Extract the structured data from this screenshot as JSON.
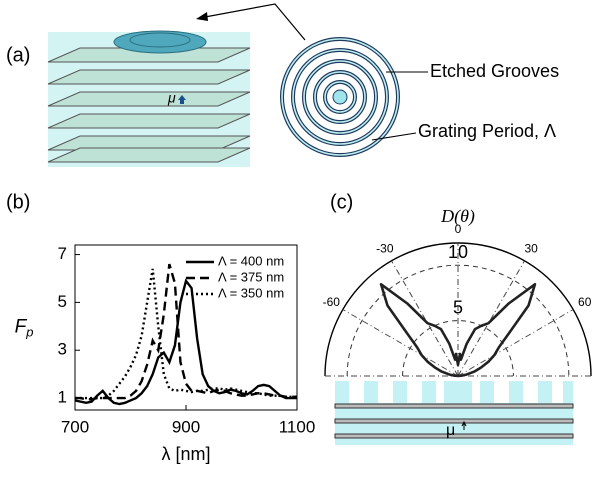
{
  "panels": [
    "(a)",
    "(b)",
    "(c)"
  ],
  "diagram": {
    "dipole": "μ",
    "labels": [
      "Etched Grooves",
      "Grating Period, Λ"
    ]
  },
  "chart_data": [
    {
      "type": "line",
      "xlabel": "λ [nm]",
      "ylabel": "F",
      "ylabel_sub": "p",
      "xlim": [
        700,
        1100
      ],
      "xticks": [
        700,
        900,
        1100
      ],
      "ylim": [
        0.5,
        7.4
      ],
      "yticks": [
        1,
        3,
        5,
        7
      ],
      "legend": "upper right",
      "x": [
        700,
        710,
        720,
        730,
        740,
        750,
        760,
        770,
        780,
        790,
        800,
        810,
        820,
        830,
        840,
        850,
        860,
        870,
        880,
        890,
        900,
        910,
        920,
        930,
        940,
        950,
        960,
        970,
        980,
        990,
        1000,
        1010,
        1020,
        1030,
        1040,
        1050,
        1060,
        1070,
        1080,
        1090,
        1100
      ],
      "series": [
        {
          "name": "Λ = 400 nm",
          "color": "#000000",
          "dash": "solid",
          "values": [
            0.9,
            0.85,
            0.8,
            0.85,
            1.1,
            1.3,
            1.0,
            0.8,
            0.75,
            0.8,
            0.9,
            1.0,
            1.2,
            1.5,
            2.0,
            2.7,
            2.9,
            2.5,
            3.2,
            5.0,
            5.9,
            5.6,
            3.5,
            2.0,
            1.5,
            1.3,
            1.2,
            1.25,
            1.35,
            1.3,
            1.2,
            1.15,
            1.3,
            1.5,
            1.55,
            1.5,
            1.3,
            1.1,
            1.0,
            1.0,
            1.0
          ]
        },
        {
          "name": "Λ = 375 nm",
          "color": "#000000",
          "dash": "dashed",
          "values": [
            1.0,
            1.0,
            0.95,
            0.95,
            1.0,
            1.0,
            1.0,
            1.0,
            1.0,
            1.0,
            1.1,
            1.3,
            1.7,
            2.4,
            3.4,
            3.0,
            4.5,
            6.6,
            5.8,
            2.5,
            1.6,
            1.3,
            1.3,
            1.25,
            1.2,
            1.3,
            1.35,
            1.3,
            1.2,
            1.15,
            1.1,
            1.1,
            1.15,
            1.2,
            1.2,
            1.15,
            1.1,
            1.1,
            1.05,
            1.05,
            1.05
          ]
        },
        {
          "name": "Λ = 350 nm",
          "color": "#000000",
          "dash": "dotted",
          "values": [
            1.0,
            1.0,
            1.0,
            1.0,
            1.0,
            1.0,
            1.1,
            1.3,
            1.6,
            1.9,
            2.3,
            2.8,
            3.6,
            5.0,
            6.4,
            4.0,
            2.0,
            1.4,
            1.3,
            1.35,
            1.3,
            1.25,
            1.3,
            1.3,
            1.35,
            1.4,
            1.4,
            1.35,
            1.4,
            1.35,
            1.3,
            1.25,
            1.2,
            1.2,
            1.15,
            1.1,
            1.1,
            1.1,
            1.05,
            1.05,
            1.05
          ]
        }
      ]
    },
    {
      "type": "polar",
      "title": "D(θ)",
      "rlim": [
        0,
        12
      ],
      "rticks": [
        5,
        10
      ],
      "thetaticks": [
        -60,
        -30,
        0,
        30,
        60
      ],
      "theta": [
        -90,
        -85,
        -80,
        -75,
        -70,
        -65,
        -60,
        -55,
        -50,
        -45,
        -40,
        -35,
        -30,
        -25,
        -20,
        -15,
        -10,
        -5,
        0,
        5,
        10,
        15,
        20,
        25,
        30,
        35,
        40,
        45,
        50,
        55,
        60,
        65,
        70,
        75,
        80,
        85,
        90
      ],
      "values": [
        0,
        0.3,
        0.8,
        1.5,
        2.2,
        3,
        3.8,
        4.5,
        6,
        9,
        10.8,
        8,
        5.5,
        5,
        4.5,
        3,
        1.5,
        2,
        1,
        2,
        1.5,
        3,
        4.5,
        5,
        5.5,
        8,
        10.8,
        9,
        6,
        4.5,
        3.8,
        3,
        2.2,
        1.5,
        0.8,
        0.3,
        0
      ],
      "color": "#222222"
    }
  ]
}
